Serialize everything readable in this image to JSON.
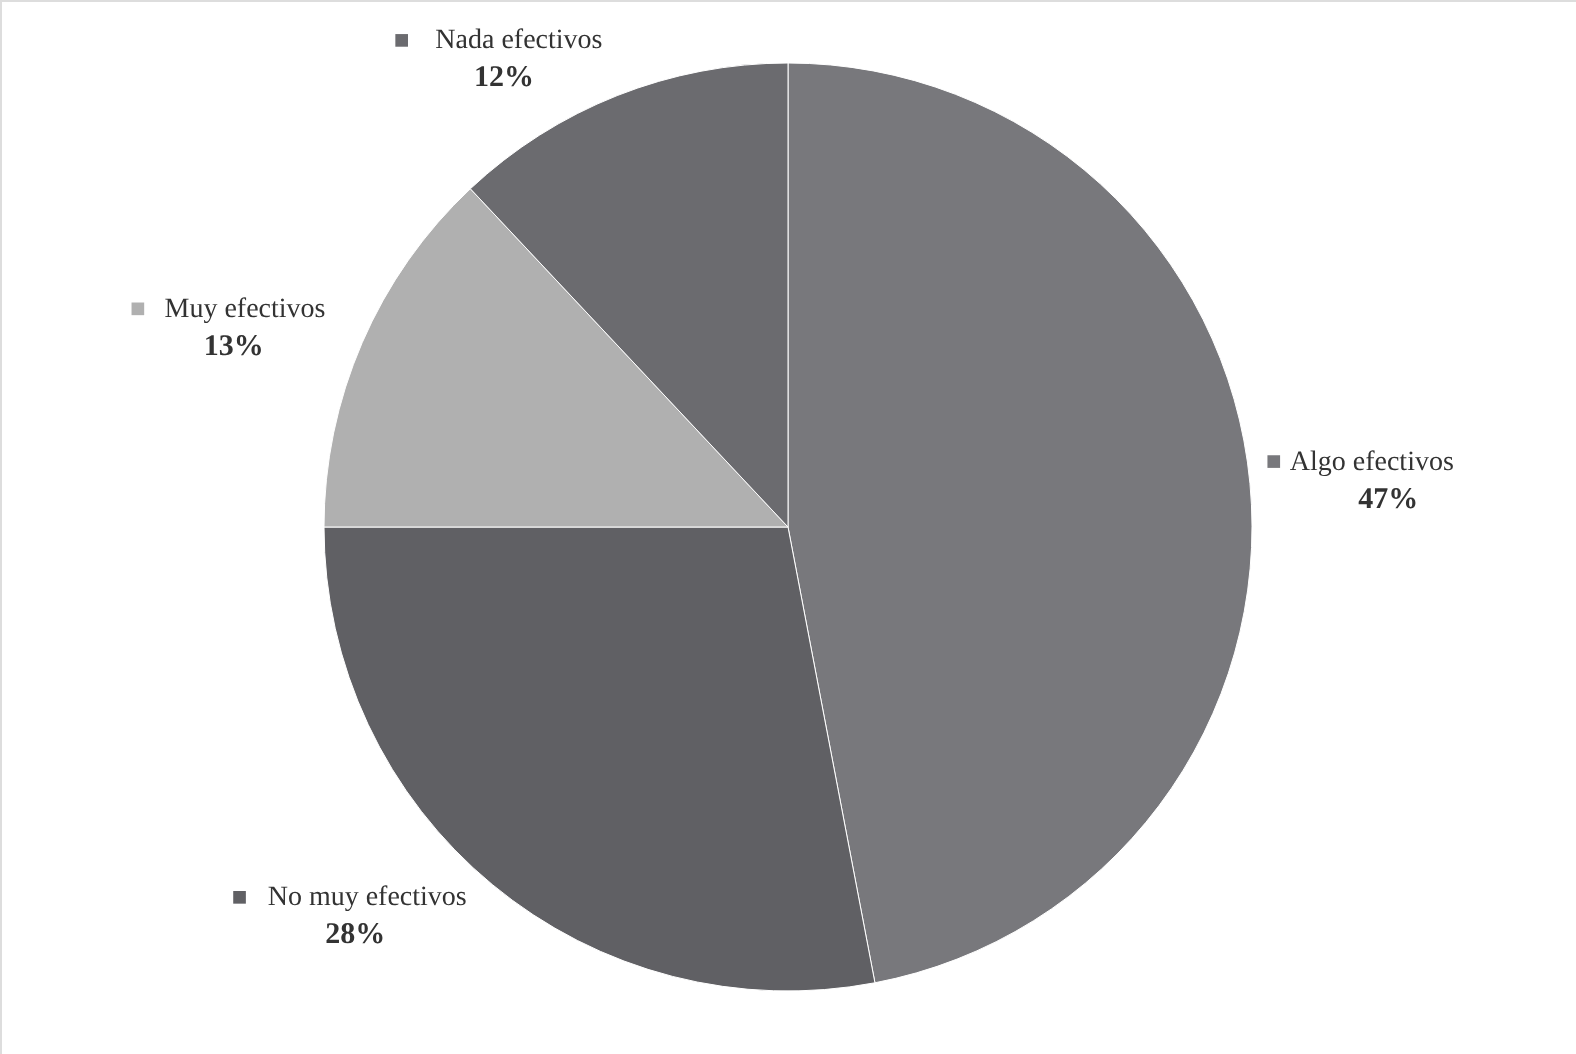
{
  "chart_data": {
    "type": "pie",
    "categories": [
      "Algo efectivos",
      "No muy efectivos",
      "Muy efectivos",
      "Nada efectivos"
    ],
    "values": [
      47,
      28,
      13,
      12
    ],
    "colors": [
      "#78787c",
      "#606064",
      "#b0b0b0",
      "#6b6b6f"
    ],
    "value_labels": [
      "47%",
      "28%",
      "13%",
      "12%"
    ],
    "legend": "left"
  }
}
